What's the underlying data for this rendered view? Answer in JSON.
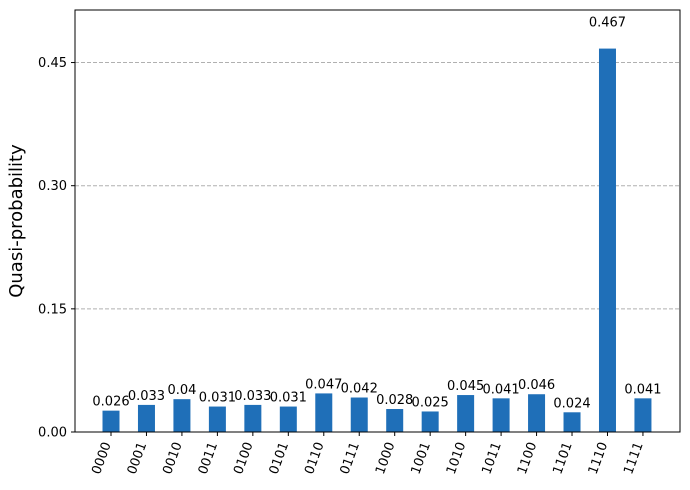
{
  "chart_data": {
    "type": "bar",
    "ylabel": "Quasi-probability",
    "categories": [
      "0000",
      "0001",
      "0010",
      "0011",
      "0100",
      "0101",
      "0110",
      "0111",
      "1000",
      "1001",
      "1010",
      "1011",
      "1100",
      "1101",
      "1110",
      "1111"
    ],
    "values": [
      0.026,
      0.033,
      0.04,
      0.031,
      0.033,
      0.031,
      0.047,
      0.042,
      0.028,
      0.025,
      0.045,
      0.041,
      0.046,
      0.024,
      0.467,
      0.041
    ],
    "color": "#1f6fb8",
    "ylim": [
      0,
      0.514
    ],
    "yticks": [
      {
        "value": 0,
        "label": "0.00"
      },
      0.15,
      {
        "value": 0.3,
        "label": "0.30"
      },
      0.45
    ],
    "grid": true
  }
}
